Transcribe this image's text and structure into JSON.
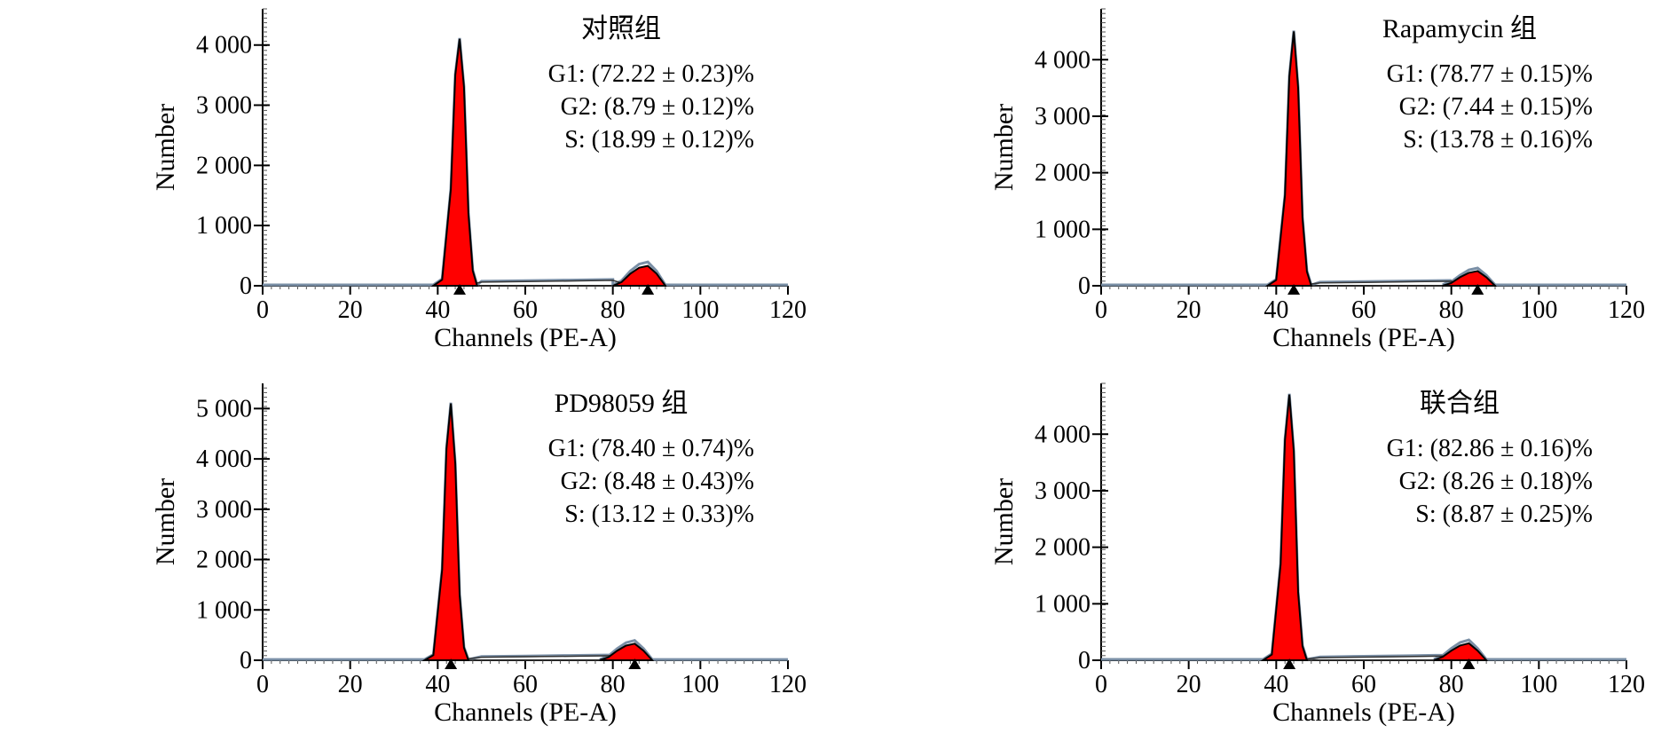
{
  "chart_data": [
    {
      "type": "area",
      "title": "对照组",
      "xlabel": "Channels (PE-A)",
      "ylabel": "Number",
      "xlim": [
        0,
        120
      ],
      "ylim": [
        0,
        4600
      ],
      "xticks": [
        0,
        20,
        40,
        60,
        80,
        100,
        120
      ],
      "xtick_labels": [
        "0",
        "20",
        "40",
        "60",
        "80",
        "100",
        "120"
      ],
      "yticks": [
        0,
        1000,
        2000,
        3000,
        4000
      ],
      "ytick_labels": [
        "0",
        "1 000",
        "2 000",
        "3 000",
        "4 000"
      ],
      "annotations": [
        "G1: (72.22 ± 0.23)%",
        "G2: (8.79 ± 0.12)%",
        "S: (18.99 ± 0.12)%"
      ],
      "g1_peak": {
        "channel": 45,
        "height": 4100
      },
      "g2_peak": {
        "channel": 88,
        "height": 330
      },
      "s_phase_level": 50,
      "series": [
        {
          "name": "G1",
          "x": [
            39,
            41,
            43,
            44,
            45,
            46,
            47,
            48,
            49
          ],
          "y": [
            0,
            100,
            1600,
            3500,
            4100,
            3300,
            1200,
            250,
            0
          ]
        },
        {
          "name": "G2",
          "x": [
            80,
            82,
            84,
            86,
            88,
            90,
            92
          ],
          "y": [
            0,
            60,
            200,
            300,
            330,
            200,
            0
          ]
        },
        {
          "name": "S",
          "x": [
            46,
            50,
            60,
            70,
            80,
            84
          ],
          "y": [
            0,
            60,
            70,
            80,
            90,
            0
          ]
        }
      ],
      "markers": [
        45,
        88
      ]
    },
    {
      "type": "area",
      "title": "Rapamycin 组",
      "xlabel": "Channels (PE-A)",
      "ylabel": "Number",
      "xlim": [
        0,
        120
      ],
      "ylim": [
        0,
        4900
      ],
      "xticks": [
        0,
        20,
        40,
        60,
        80,
        100,
        120
      ],
      "xtick_labels": [
        "0",
        "20",
        "40",
        "60",
        "80",
        "100",
        "120"
      ],
      "yticks": [
        0,
        1000,
        2000,
        3000,
        4000
      ],
      "ytick_labels": [
        "0",
        "1 000",
        "2 000",
        "3 000",
        "4 000"
      ],
      "annotations": [
        "G1: (78.77 ± 0.15)%",
        "G2: (7.44 ± 0.15)%",
        "S: (13.78 ± 0.16)%"
      ],
      "g1_peak": {
        "channel": 44,
        "height": 4500
      },
      "g2_peak": {
        "channel": 86,
        "height": 260
      },
      "s_phase_level": 45,
      "series": [
        {
          "name": "G1",
          "x": [
            38,
            40,
            42,
            43,
            44,
            45,
            46,
            47,
            48
          ],
          "y": [
            0,
            100,
            1600,
            3700,
            4500,
            3500,
            1200,
            250,
            0
          ]
        },
        {
          "name": "G2",
          "x": [
            78,
            80,
            82,
            84,
            86,
            88,
            90
          ],
          "y": [
            0,
            50,
            150,
            230,
            260,
            150,
            0
          ]
        },
        {
          "name": "S",
          "x": [
            45,
            50,
            60,
            70,
            80,
            82
          ],
          "y": [
            0,
            50,
            60,
            70,
            80,
            0
          ]
        }
      ],
      "markers": [
        44,
        86
      ]
    },
    {
      "type": "area",
      "title": "PD98059 组",
      "xlabel": "Channels (PE-A)",
      "ylabel": "Number",
      "xlim": [
        0,
        120
      ],
      "ylim": [
        0,
        5500
      ],
      "xticks": [
        0,
        20,
        40,
        60,
        80,
        100,
        120
      ],
      "xtick_labels": [
        "0",
        "20",
        "40",
        "60",
        "80",
        "100",
        "120"
      ],
      "yticks": [
        0,
        1000,
        2000,
        3000,
        4000,
        5000
      ],
      "ytick_labels": [
        "0",
        "1 000",
        "2 000",
        "3 000",
        "4 000",
        "5 000"
      ],
      "annotations": [
        "G1: (78.40 ± 0.74)%",
        "G2: (8.48 ± 0.43)%",
        "S: (13.12 ± 0.33)%"
      ],
      "g1_peak": {
        "channel": 43,
        "height": 5100
      },
      "g2_peak": {
        "channel": 85,
        "height": 330
      },
      "s_phase_level": 50,
      "series": [
        {
          "name": "G1",
          "x": [
            37,
            39,
            41,
            42,
            43,
            44,
            45,
            46,
            47
          ],
          "y": [
            0,
            100,
            1800,
            4200,
            5100,
            3900,
            1300,
            250,
            0
          ]
        },
        {
          "name": "G2",
          "x": [
            77,
            79,
            81,
            83,
            85,
            87,
            89
          ],
          "y": [
            0,
            60,
            190,
            290,
            330,
            190,
            0
          ]
        },
        {
          "name": "S",
          "x": [
            44,
            50,
            60,
            70,
            80,
            81
          ],
          "y": [
            0,
            60,
            70,
            80,
            90,
            0
          ]
        }
      ],
      "markers": [
        43,
        85
      ]
    },
    {
      "type": "area",
      "title": "联合组",
      "xlabel": "Channels (PE-A)",
      "ylabel": "Number",
      "xlim": [
        0,
        120
      ],
      "ylim": [
        0,
        4900
      ],
      "xticks": [
        0,
        20,
        40,
        60,
        80,
        100,
        120
      ],
      "xtick_labels": [
        "0",
        "20",
        "40",
        "60",
        "80",
        "100",
        "120"
      ],
      "yticks": [
        0,
        1000,
        2000,
        3000,
        4000
      ],
      "ytick_labels": [
        "0",
        "1 000",
        "2 000",
        "3 000",
        "4 000"
      ],
      "annotations": [
        "G1: (82.86 ± 0.16)%",
        "G2: (8.26 ± 0.18)%",
        "S: (8.87 ± 0.25)%"
      ],
      "g1_peak": {
        "channel": 43,
        "height": 4700
      },
      "g2_peak": {
        "channel": 84,
        "height": 300
      },
      "s_phase_level": 40,
      "series": [
        {
          "name": "G1",
          "x": [
            37,
            39,
            41,
            42,
            43,
            44,
            45,
            46,
            47
          ],
          "y": [
            0,
            100,
            1700,
            3900,
            4700,
            3700,
            1200,
            250,
            0
          ]
        },
        {
          "name": "G2",
          "x": [
            76,
            78,
            80,
            82,
            84,
            86,
            88
          ],
          "y": [
            0,
            60,
            170,
            260,
            300,
            170,
            0
          ]
        },
        {
          "name": "S",
          "x": [
            44,
            50,
            60,
            70,
            78,
            80
          ],
          "y": [
            0,
            45,
            55,
            65,
            75,
            0
          ]
        }
      ],
      "markers": [
        43,
        84
      ]
    }
  ],
  "colors": {
    "fill": "#ff0000",
    "outline": "#000000",
    "envelope": "#7a8fa6",
    "axis": "#000000"
  }
}
